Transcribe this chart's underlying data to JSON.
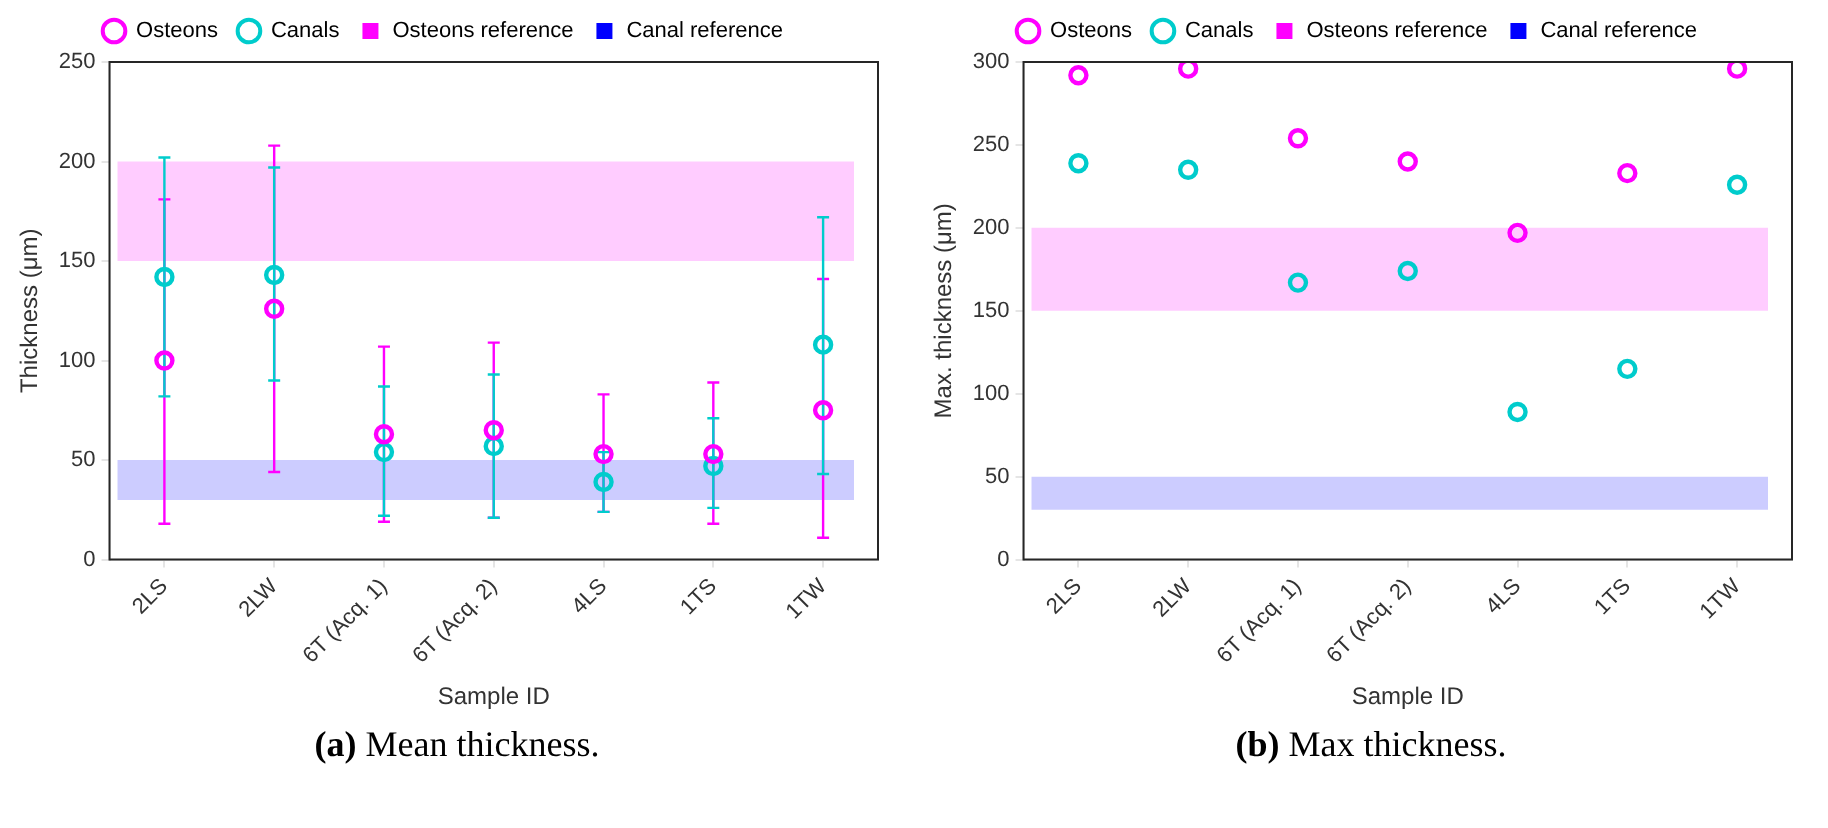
{
  "chart_data": [
    {
      "type": "scatter",
      "xlabel": "Sample ID",
      "ylabel": "Thickness (μm)",
      "categories": [
        "2LS",
        "2LW",
        "6T (Acq. 1)",
        "6T (Acq. 2)",
        "4LS",
        "1TS",
        "1TW"
      ],
      "series": [
        {
          "name": "Osteons",
          "color": "#ff00ff",
          "values": [
            100,
            126,
            63,
            65,
            53,
            53,
            75
          ],
          "errors": [
            [
              18,
              181
            ],
            [
              44,
              208
            ],
            [
              19,
              107
            ],
            [
              21,
              109
            ],
            [
              24,
              83
            ],
            [
              18,
              89
            ],
            [
              11,
              141
            ]
          ]
        },
        {
          "name": "Canals",
          "color": "#00cccc",
          "values": [
            142,
            143,
            54,
            57,
            39,
            47,
            108
          ],
          "errors": [
            [
              82,
              202
            ],
            [
              90,
              197
            ],
            [
              22,
              87
            ],
            [
              21,
              93
            ],
            [
              24,
              54
            ],
            [
              26,
              71
            ],
            [
              43,
              172
            ]
          ]
        }
      ],
      "bands": [
        {
          "axis": "y",
          "from": 150,
          "to": 200,
          "label": "Osteons reference",
          "color": "#ff00ff"
        },
        {
          "axis": "y",
          "from": 30,
          "to": 50,
          "label": "Canal reference",
          "color": "#0000ff"
        }
      ],
      "ylim": [
        0,
        250
      ],
      "yticks": [
        0,
        50,
        100,
        150,
        200,
        250
      ],
      "marker": "circle",
      "legend": "top",
      "grid": false,
      "annotations": [
        "(a) Mean thickness."
      ]
    },
    {
      "type": "scatter",
      "xlabel": "Sample ID",
      "ylabel": "Max. thickness (μm)",
      "categories": [
        "2LS",
        "2LW",
        "6T (Acq. 1)",
        "6T (Acq. 2)",
        "4LS",
        "1TS",
        "1TW"
      ],
      "series": [
        {
          "name": "Osteons",
          "color": "#ff00ff",
          "values": [
            292,
            296,
            254,
            240,
            197,
            233,
            296
          ]
        },
        {
          "name": "Canals",
          "color": "#00cccc",
          "values": [
            239,
            235,
            167,
            174,
            89,
            115,
            226
          ]
        }
      ],
      "bands": [
        {
          "axis": "y",
          "from": 150,
          "to": 200,
          "label": "Osteons reference",
          "color": "#ff00ff"
        },
        {
          "axis": "y",
          "from": 30,
          "to": 50,
          "label": "Canal reference",
          "color": "#0000ff"
        }
      ],
      "ylim": [
        0,
        300
      ],
      "yticks": [
        0,
        50,
        100,
        150,
        200,
        250,
        300
      ],
      "marker": "circle",
      "legend": "top",
      "grid": false,
      "annotations": [
        "(b) Max thickness."
      ]
    }
  ]
}
